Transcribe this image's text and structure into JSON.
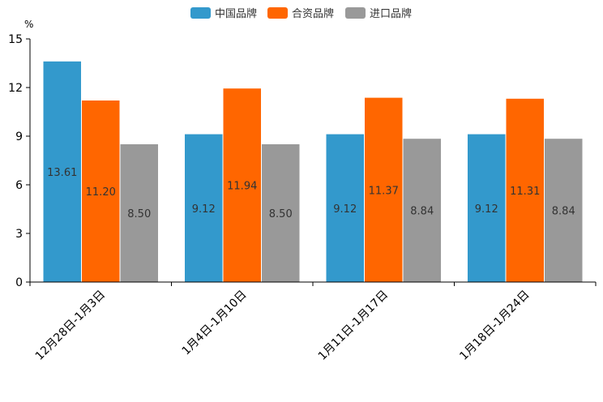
{
  "chart_data": {
    "type": "bar",
    "ylabel": "%",
    "ylim": [
      0,
      15
    ],
    "yticks": [
      "0",
      "3",
      "6",
      "9",
      "12",
      "15"
    ],
    "categories": [
      "12月28日-1月3日",
      "1月4日-1月10日",
      "1月11日-1月17日",
      "1月18日-1月24日"
    ],
    "legend_position": "top",
    "series": [
      {
        "name": "中国品牌",
        "color": "#3399cc",
        "values": [
          13.61,
          9.12,
          9.12,
          9.12
        ],
        "labels": [
          "13.61",
          "9.12",
          "9.12",
          "9.12"
        ]
      },
      {
        "name": "合资品牌",
        "color": "#ff6600",
        "values": [
          11.2,
          11.94,
          11.37,
          11.31
        ],
        "labels": [
          "11.20",
          "11.94",
          "11.37",
          "11.31"
        ]
      },
      {
        "name": "进口品牌",
        "color": "#999999",
        "values": [
          8.5,
          8.5,
          8.84,
          8.84
        ],
        "labels": [
          "8.50",
          "8.50",
          "8.84",
          "8.84"
        ]
      }
    ]
  }
}
